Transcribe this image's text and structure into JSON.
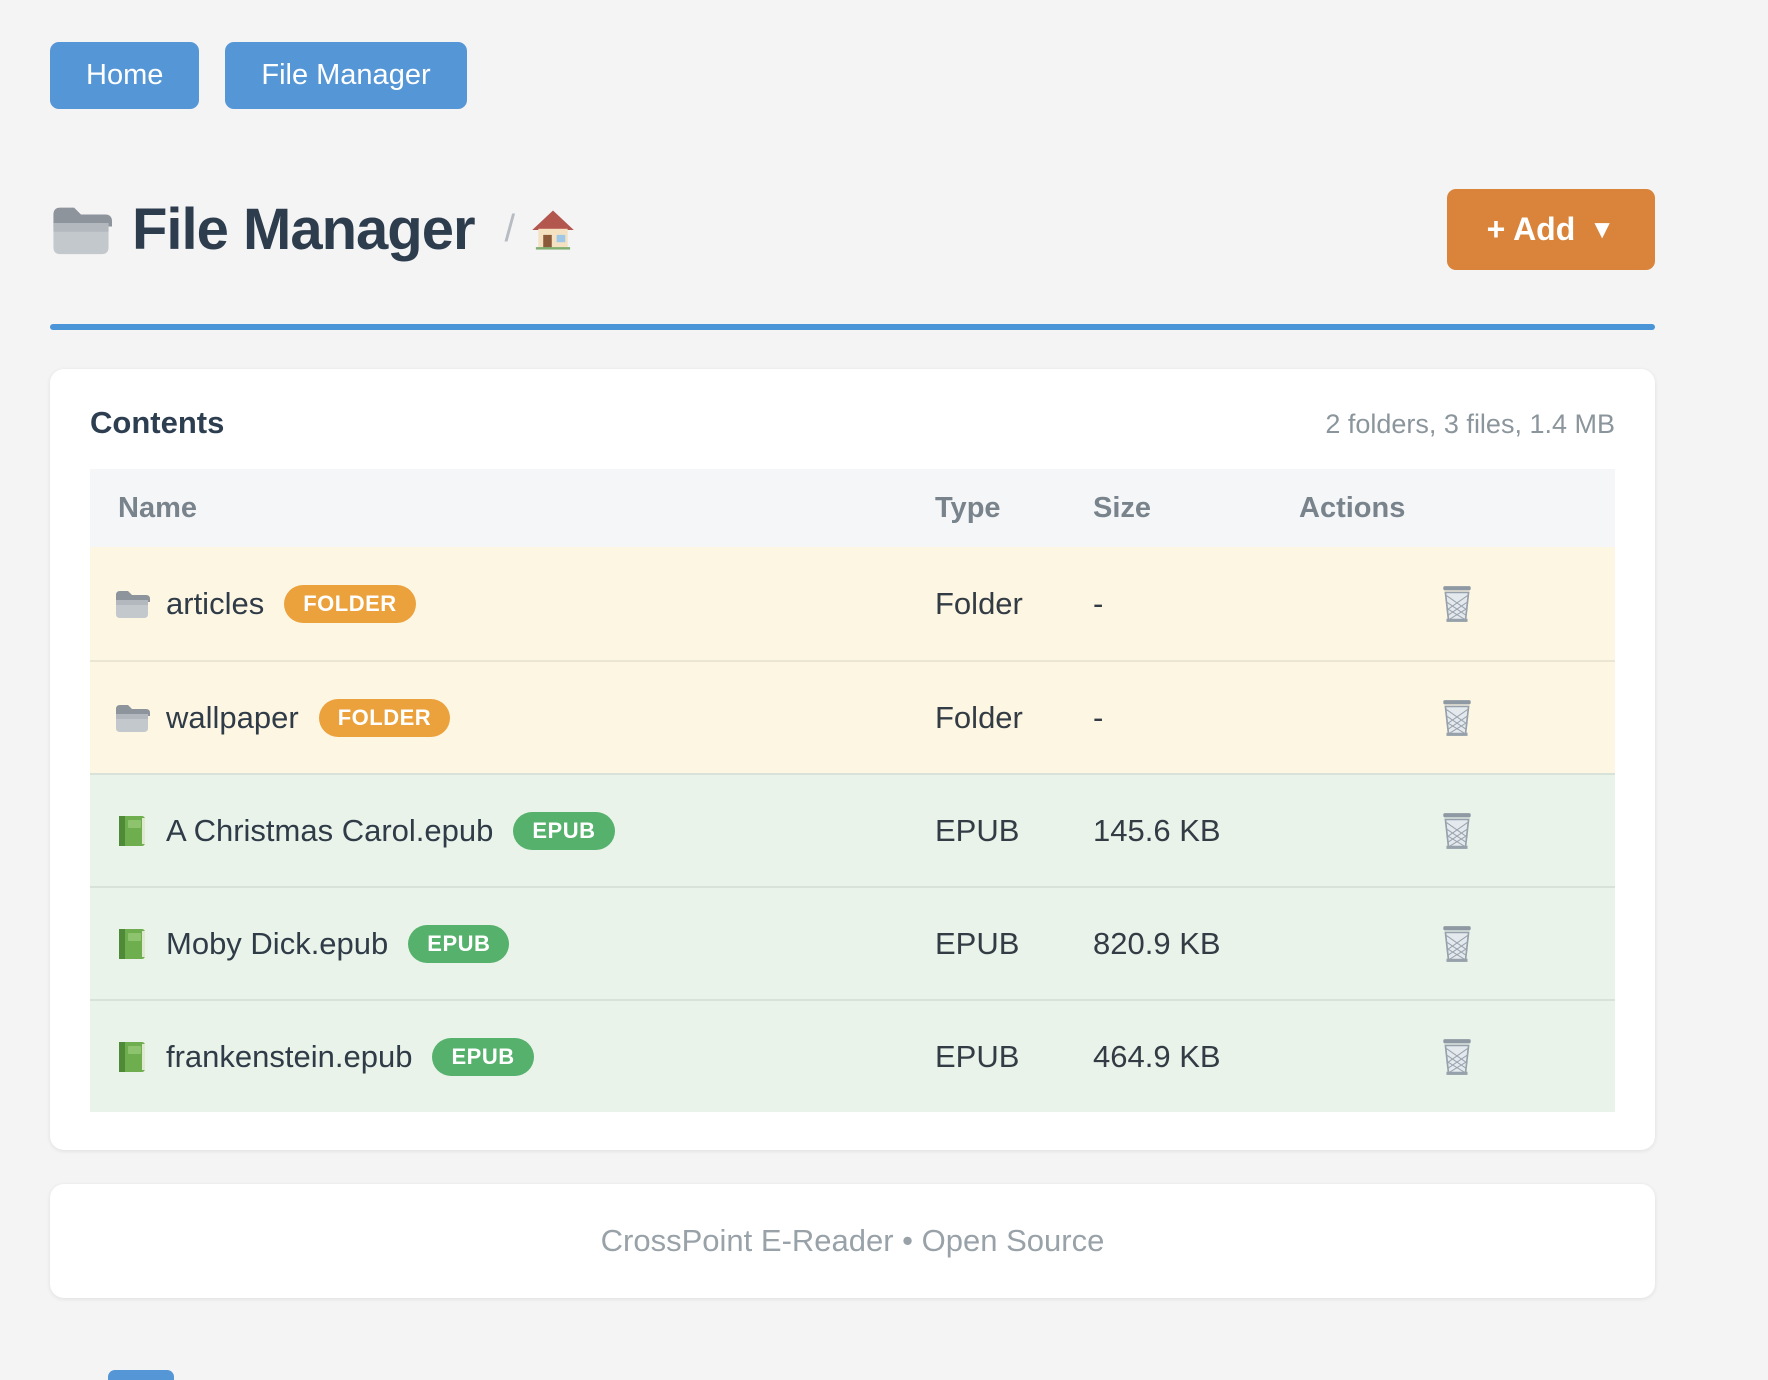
{
  "nav": {
    "buttons": [
      {
        "label": "Home"
      },
      {
        "label": "File Manager"
      }
    ]
  },
  "header": {
    "title": "File Manager",
    "breadcrumb_separator": "/",
    "add_button": {
      "label": "+ Add",
      "caret": "▼"
    }
  },
  "contents": {
    "heading": "Contents",
    "summary": "2 folders, 3 files, 1.4 MB",
    "table": {
      "columns": [
        "Name",
        "Type",
        "Size",
        "Actions"
      ],
      "rows": [
        {
          "name": "articles",
          "badge": "FOLDER",
          "kind": "folder",
          "type": "Folder",
          "size": "-"
        },
        {
          "name": "wallpaper",
          "badge": "FOLDER",
          "kind": "folder",
          "type": "Folder",
          "size": "-"
        },
        {
          "name": "A Christmas Carol.epub",
          "badge": "EPUB",
          "kind": "epub",
          "type": "EPUB",
          "size": "145.6 KB"
        },
        {
          "name": "Moby Dick.epub",
          "badge": "EPUB",
          "kind": "epub",
          "type": "EPUB",
          "size": "820.9 KB"
        },
        {
          "name": "frankenstein.epub",
          "badge": "EPUB",
          "kind": "epub",
          "type": "EPUB",
          "size": "464.9 KB"
        }
      ]
    }
  },
  "footer": {
    "text": "CrossPoint E-Reader • Open Source"
  },
  "icons": {
    "title": "folder-icon",
    "breadcrumb": "home-icon",
    "folder_row": "folder-icon",
    "epub_row": "green-book-icon",
    "action": "trash-icon"
  },
  "colors": {
    "page_background": "#f4f4f5",
    "nav_button_blue": "#5596d6",
    "title_text": "#2e3d4e",
    "title_rule_blue": "#4a94d8",
    "add_button_orange": "#d9843a",
    "folder_row_background": "#fdf6e3",
    "epub_row_background": "#e9f3ea",
    "folder_badge": "#eba23c",
    "epub_badge": "#55b16c",
    "table_header_background": "#f5f6f8",
    "footer_text": "#98a2a8"
  }
}
